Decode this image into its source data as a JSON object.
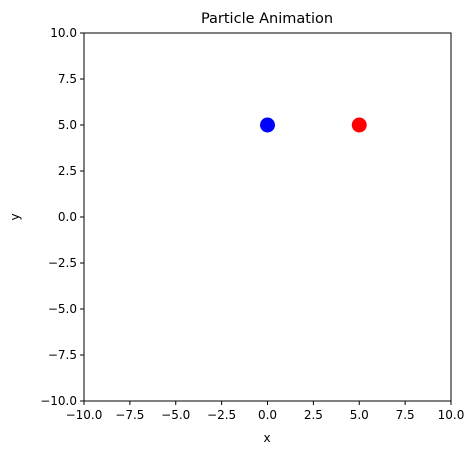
{
  "chart_data": {
    "type": "scatter",
    "title": "Particle Animation",
    "xlabel": "x",
    "ylabel": "y",
    "xlim": [
      -10,
      10
    ],
    "ylim": [
      -10,
      10
    ],
    "xticks": [
      "−10.0",
      "−7.5",
      "−5.0",
      "−2.5",
      "0.0",
      "2.5",
      "5.0",
      "7.5",
      "10.0"
    ],
    "yticks": [
      "−10.0",
      "−7.5",
      "−5.0",
      "−2.5",
      "0.0",
      "2.5",
      "5.0",
      "7.5",
      "10.0"
    ],
    "grid": false,
    "points": [
      {
        "x": 0.0,
        "y": 5.0,
        "color": "#0000ff"
      },
      {
        "x": 5.0,
        "y": 5.0,
        "color": "#ff0000"
      }
    ]
  }
}
